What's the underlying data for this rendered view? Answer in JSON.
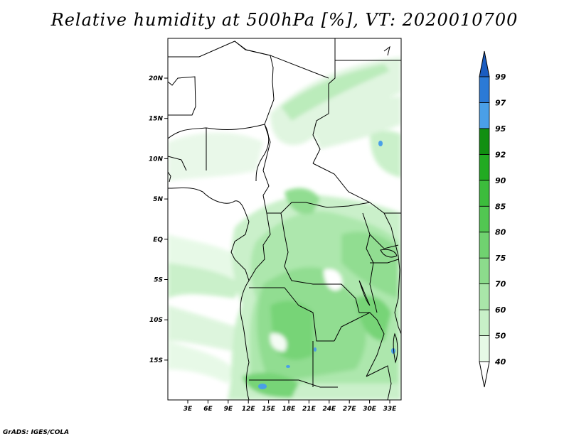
{
  "title": "Relative humidity at 500hPa [%], VT: 2020010700",
  "credit": "GrADS: IGES/COLA",
  "map": {
    "lon_range": [
      0,
      35
    ],
    "lat_range": [
      -20,
      25
    ],
    "lat_ticks": [
      "20N",
      "15N",
      "10N",
      "5N",
      "EQ",
      "5S",
      "10S",
      "15S"
    ],
    "lon_ticks": [
      "3E",
      "6E",
      "9E",
      "12E",
      "15E",
      "18E",
      "21E",
      "24E",
      "27E",
      "30E",
      "33E"
    ]
  },
  "colorbar": {
    "levels": [
      "40",
      "50",
      "60",
      "70",
      "75",
      "80",
      "85",
      "90",
      "92",
      "95",
      "97",
      "99"
    ],
    "colors": [
      "#e6f9e6",
      "#c8f0c8",
      "#a9e6a9",
      "#8cdc8c",
      "#70d270",
      "#52c752",
      "#3cbc3c",
      "#22ab22",
      "#118f11",
      "#4a9fe8",
      "#2b7ad6",
      "#1a5cc0"
    ]
  }
}
